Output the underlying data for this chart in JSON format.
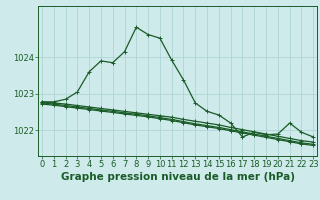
{
  "title": "Graphe pression niveau de la mer (hPa)",
  "background_color": "#ceeaea",
  "grid_color": "#b0d4d4",
  "line_color": "#1a5c28",
  "x_ticks": [
    0,
    1,
    2,
    3,
    4,
    5,
    6,
    7,
    8,
    9,
    10,
    11,
    12,
    13,
    14,
    15,
    16,
    17,
    18,
    19,
    20,
    21,
    22,
    23
  ],
  "y_ticks": [
    1022,
    1023,
    1024
  ],
  "ylim": [
    1021.3,
    1025.4
  ],
  "xlim": [
    -0.3,
    23.3
  ],
  "series": [
    [
      1022.78,
      1022.78,
      1022.85,
      1023.05,
      1023.6,
      1023.9,
      1023.85,
      1024.15,
      1024.82,
      1024.62,
      1024.52,
      1023.92,
      1023.38,
      1022.75,
      1022.52,
      1022.42,
      1022.2,
      1021.82,
      1021.95,
      1021.88,
      1021.9,
      1022.2,
      1021.95,
      1021.82
    ],
    [
      1022.78,
      1022.75,
      1022.72,
      1022.68,
      1022.64,
      1022.6,
      1022.56,
      1022.52,
      1022.48,
      1022.44,
      1022.4,
      1022.36,
      1022.3,
      1022.25,
      1022.2,
      1022.15,
      1022.08,
      1022.02,
      1021.96,
      1021.9,
      1021.84,
      1021.78,
      1021.72,
      1021.68
    ],
    [
      1022.75,
      1022.72,
      1022.68,
      1022.64,
      1022.6,
      1022.56,
      1022.52,
      1022.48,
      1022.44,
      1022.4,
      1022.35,
      1022.3,
      1022.24,
      1022.18,
      1022.13,
      1022.08,
      1022.02,
      1021.96,
      1021.9,
      1021.84,
      1021.78,
      1021.72,
      1021.66,
      1021.62
    ],
    [
      1022.72,
      1022.69,
      1022.65,
      1022.61,
      1022.57,
      1022.53,
      1022.49,
      1022.45,
      1022.41,
      1022.37,
      1022.32,
      1022.27,
      1022.21,
      1022.15,
      1022.1,
      1022.05,
      1021.99,
      1021.93,
      1021.87,
      1021.81,
      1021.75,
      1021.69,
      1021.63,
      1021.59
    ]
  ],
  "marker": "+",
  "marker_size": 3.5,
  "linewidth": 0.9,
  "title_fontsize": 7.5,
  "tick_fontsize": 6.0,
  "figsize": [
    3.2,
    2.0
  ],
  "dpi": 100
}
